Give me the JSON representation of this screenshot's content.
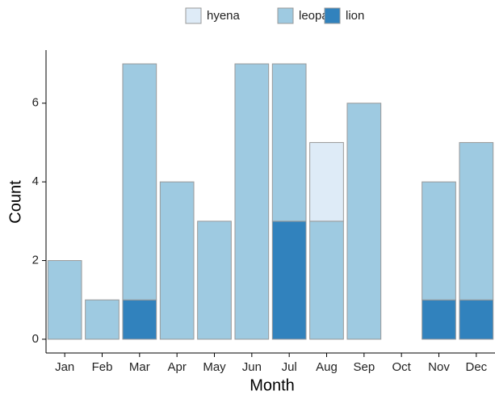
{
  "chart_data": {
    "type": "bar",
    "stacked": true,
    "x_label": "Month",
    "y_label": "Count",
    "categories": [
      "Jan",
      "Feb",
      "Mar",
      "Apr",
      "May",
      "Jun",
      "Jul",
      "Aug",
      "Sep",
      "Oct",
      "Nov",
      "Dec"
    ],
    "series": [
      {
        "name": "lion",
        "color": "#3182bd",
        "values": [
          0,
          0,
          1,
          0,
          0,
          0,
          3,
          0,
          0,
          0,
          1,
          1
        ]
      },
      {
        "name": "leopard",
        "color": "#9ecae1",
        "values": [
          2,
          1,
          6,
          4,
          3,
          7,
          4,
          3,
          6,
          0,
          3,
          4
        ]
      },
      {
        "name": "hyena",
        "color": "#deebf7",
        "values": [
          0,
          0,
          0,
          0,
          0,
          0,
          0,
          2,
          0,
          0,
          0,
          0
        ]
      }
    ],
    "legend_order": [
      "hyena",
      "leopard",
      "lion"
    ],
    "legend_position": "top",
    "ylim": [
      -0.35,
      7.35
    ],
    "yticks": [
      0,
      2,
      4,
      6
    ]
  }
}
